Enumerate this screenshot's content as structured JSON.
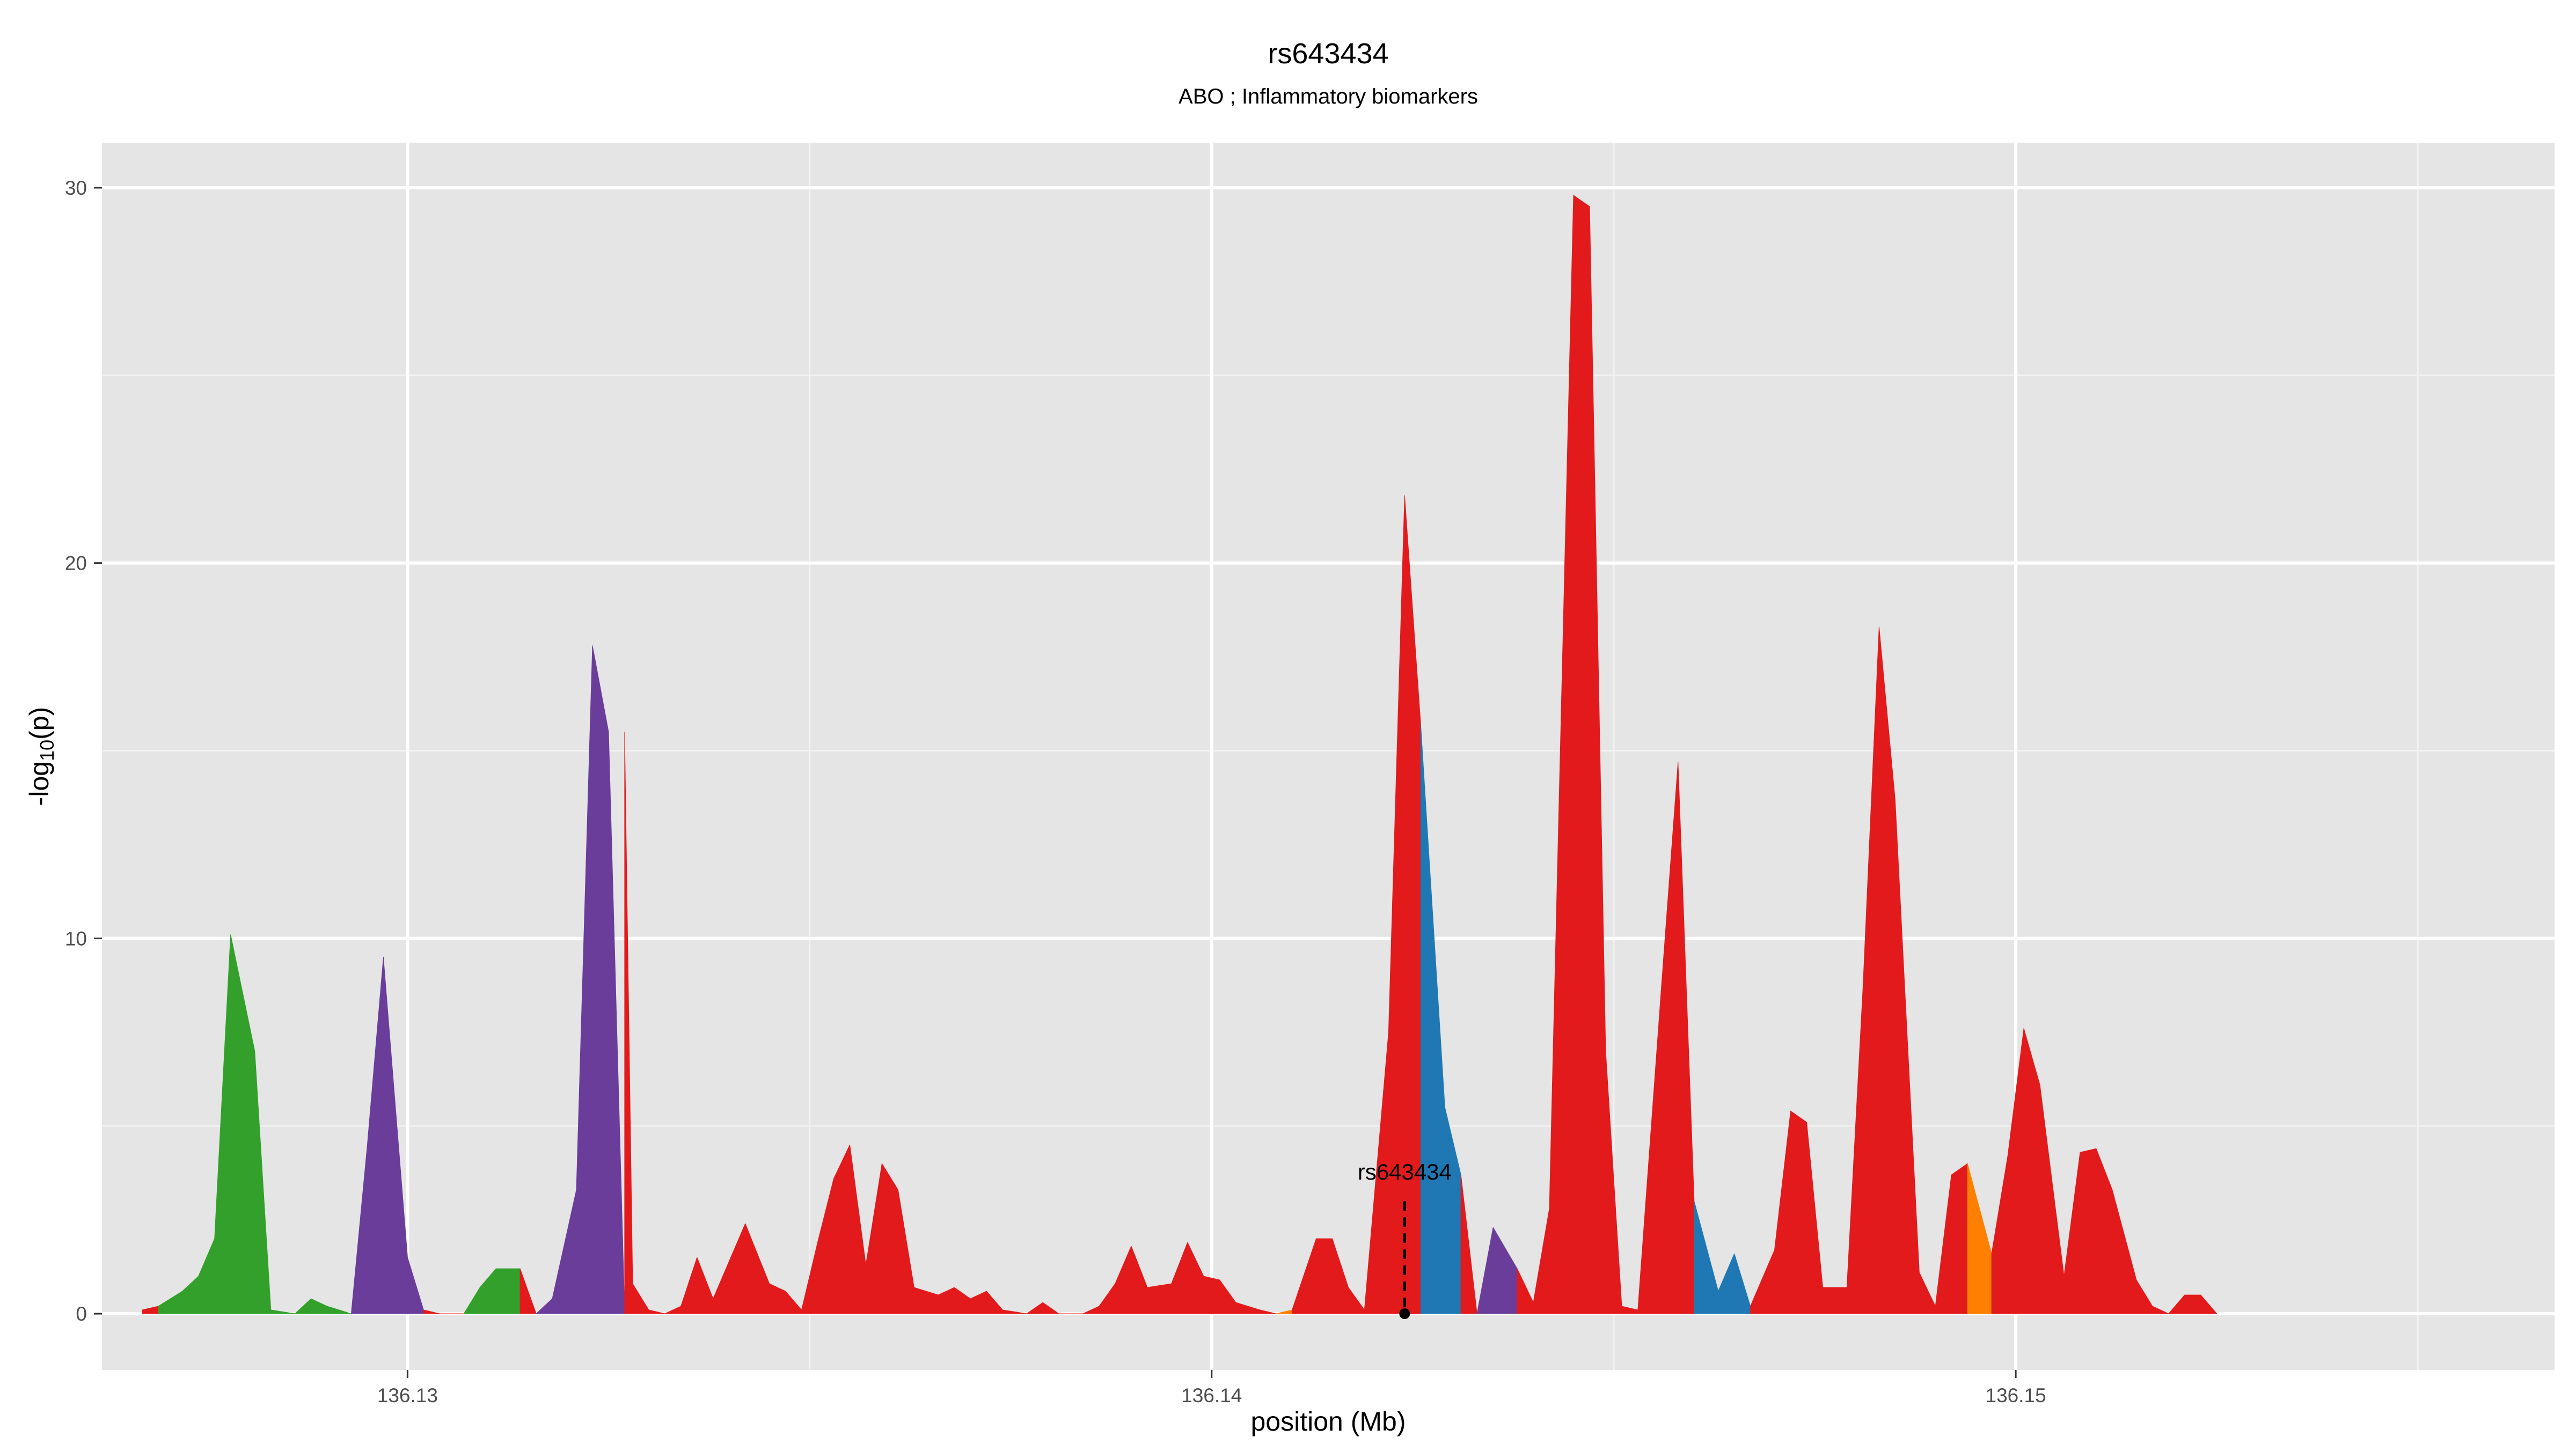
{
  "chart_data": {
    "type": "area",
    "title": "rs643434",
    "subtitle": "ABO ; Inflammatory biomarkers",
    "xlabel": "position (Mb)",
    "ylabel_main": "-log",
    "ylabel_sub": "10",
    "ylabel_suffix": "(p)",
    "xlim": [
      136.1262,
      136.1567
    ],
    "ylim": [
      -1.5,
      31.2
    ],
    "x_ticks": [
      136.13,
      136.14,
      136.15
    ],
    "x_tick_labels": [
      "136.13",
      "136.14",
      "136.15"
    ],
    "y_ticks": [
      0,
      10,
      20,
      30
    ],
    "y_tick_labels": [
      "0",
      "10",
      "20",
      "30"
    ],
    "grid": true,
    "background": "#e5e5e5",
    "colors": {
      "red": "#e31a1c",
      "green": "#33a02c",
      "purple": "#6a3d9a",
      "blue": "#1f78b4",
      "orange": "#ff7f00"
    },
    "annotation": {
      "label": "rs643434",
      "x": 136.1424,
      "y": 0,
      "line_top": 3.0
    },
    "series": [
      {
        "color": "red",
        "points": [
          [
            136.1267,
            0.1
          ],
          [
            136.1269,
            0.2
          ]
        ]
      },
      {
        "color": "green",
        "points": [
          [
            136.1269,
            0.2
          ],
          [
            136.1272,
            0.6
          ],
          [
            136.1274,
            1.0
          ],
          [
            136.1276,
            2.0
          ],
          [
            136.1278,
            10.1
          ],
          [
            136.1281,
            7.0
          ],
          [
            136.1283,
            0.1
          ],
          [
            136.1286,
            0.0
          ],
          [
            136.1288,
            0.4
          ],
          [
            136.129,
            0.2
          ],
          [
            136.1293,
            0.0
          ]
        ]
      },
      {
        "color": "purple",
        "points": [
          [
            136.1293,
            0.0
          ],
          [
            136.1295,
            4.5
          ],
          [
            136.1297,
            9.5
          ],
          [
            136.13,
            1.5
          ],
          [
            136.1302,
            0.1
          ]
        ]
      },
      {
        "color": "red",
        "points": [
          [
            136.1302,
            0.1
          ],
          [
            136.1304,
            0.0
          ],
          [
            136.1307,
            0.0
          ]
        ]
      },
      {
        "color": "green",
        "points": [
          [
            136.1307,
            0.0
          ],
          [
            136.1309,
            0.7
          ],
          [
            136.1311,
            1.2
          ],
          [
            136.1314,
            1.2
          ]
        ]
      },
      {
        "color": "red",
        "points": [
          [
            136.1314,
            1.2
          ],
          [
            136.1316,
            0.0
          ]
        ]
      },
      {
        "color": "purple",
        "points": [
          [
            136.1316,
            0.0
          ],
          [
            136.1318,
            0.4
          ],
          [
            136.1321,
            3.3
          ],
          [
            136.1323,
            17.8
          ],
          [
            136.1325,
            15.5
          ],
          [
            136.1327,
            0.1
          ]
        ]
      },
      {
        "color": "red",
        "points": [
          [
            136.1327,
            15.5
          ],
          [
            136.1328,
            0.8
          ],
          [
            136.133,
            0.1
          ],
          [
            136.1332,
            0.0
          ],
          [
            136.1334,
            0.2
          ],
          [
            136.1336,
            1.5
          ],
          [
            136.1338,
            0.4
          ],
          [
            136.134,
            1.4
          ],
          [
            136.1342,
            2.4
          ],
          [
            136.1345,
            0.8
          ],
          [
            136.1347,
            0.6
          ],
          [
            136.1349,
            0.1
          ],
          [
            136.1351,
            1.9
          ],
          [
            136.1353,
            3.6
          ],
          [
            136.1355,
            4.5
          ],
          [
            136.1357,
            1.3
          ],
          [
            136.1359,
            4.0
          ],
          [
            136.1361,
            3.3
          ],
          [
            136.1363,
            0.7
          ],
          [
            136.1366,
            0.5
          ],
          [
            136.1368,
            0.7
          ],
          [
            136.137,
            0.4
          ],
          [
            136.1372,
            0.6
          ],
          [
            136.1374,
            0.1
          ],
          [
            136.1377,
            0.0
          ],
          [
            136.1379,
            0.3
          ],
          [
            136.1381,
            0.0
          ],
          [
            136.1384,
            0.0
          ],
          [
            136.1386,
            0.2
          ],
          [
            136.1388,
            0.8
          ],
          [
            136.139,
            1.8
          ],
          [
            136.1392,
            0.7
          ],
          [
            136.1395,
            0.8
          ],
          [
            136.1397,
            1.9
          ],
          [
            136.1399,
            1.0
          ],
          [
            136.1401,
            0.9
          ],
          [
            136.1403,
            0.3
          ],
          [
            136.1406,
            0.1
          ],
          [
            136.1408,
            0.0
          ]
        ]
      },
      {
        "color": "orange",
        "points": [
          [
            136.1408,
            0.0
          ],
          [
            136.141,
            0.1
          ]
        ]
      },
      {
        "color": "red",
        "points": [
          [
            136.141,
            0.1
          ],
          [
            136.1413,
            2.0
          ],
          [
            136.1415,
            2.0
          ],
          [
            136.1417,
            0.7
          ],
          [
            136.1419,
            0.1
          ],
          [
            136.1422,
            7.5
          ],
          [
            136.1424,
            21.8
          ],
          [
            136.1426,
            15.7
          ]
        ]
      },
      {
        "color": "blue",
        "points": [
          [
            136.1426,
            15.7
          ],
          [
            136.1429,
            5.5
          ],
          [
            136.1431,
            3.7
          ]
        ]
      },
      {
        "color": "red",
        "points": [
          [
            136.1431,
            3.7
          ],
          [
            136.1433,
            0.0
          ]
        ]
      },
      {
        "color": "purple",
        "points": [
          [
            136.1433,
            0.0
          ],
          [
            136.1435,
            2.3
          ],
          [
            136.1438,
            1.2
          ]
        ]
      },
      {
        "color": "red",
        "points": [
          [
            136.1438,
            1.2
          ],
          [
            136.144,
            0.3
          ],
          [
            136.1442,
            2.8
          ],
          [
            136.1445,
            29.8
          ],
          [
            136.1447,
            29.5
          ],
          [
            136.1449,
            7.0
          ],
          [
            136.1451,
            0.2
          ],
          [
            136.1453,
            0.1
          ],
          [
            136.1456,
            8.9
          ],
          [
            136.1458,
            14.7
          ],
          [
            136.146,
            3.0
          ]
        ]
      },
      {
        "color": "blue",
        "points": [
          [
            136.146,
            3.0
          ],
          [
            136.1463,
            0.6
          ],
          [
            136.1465,
            1.6
          ],
          [
            136.1467,
            0.2
          ]
        ]
      },
      {
        "color": "red",
        "points": [
          [
            136.1467,
            0.2
          ],
          [
            136.147,
            1.7
          ],
          [
            136.1472,
            5.4
          ],
          [
            136.1474,
            5.1
          ],
          [
            136.1476,
            0.7
          ],
          [
            136.1479,
            0.7
          ],
          [
            136.1481,
            8.7
          ],
          [
            136.1483,
            18.3
          ],
          [
            136.1485,
            13.7
          ],
          [
            136.1488,
            1.1
          ],
          [
            136.149,
            0.2
          ],
          [
            136.1492,
            3.7
          ],
          [
            136.1494,
            4.0
          ]
        ]
      },
      {
        "color": "orange",
        "points": [
          [
            136.1494,
            4.0
          ],
          [
            136.1497,
            1.6
          ]
        ]
      },
      {
        "color": "red",
        "points": [
          [
            136.1497,
            1.6
          ],
          [
            136.1499,
            4.2
          ],
          [
            136.1501,
            7.6
          ],
          [
            136.1503,
            6.1
          ],
          [
            136.1506,
            1.0
          ],
          [
            136.1508,
            4.3
          ],
          [
            136.151,
            4.4
          ],
          [
            136.1512,
            3.3
          ],
          [
            136.1515,
            0.9
          ],
          [
            136.1517,
            0.2
          ],
          [
            136.1519,
            0.0
          ],
          [
            136.1521,
            0.5
          ],
          [
            136.1523,
            0.5
          ],
          [
            136.1525,
            0.0
          ]
        ]
      }
    ]
  }
}
